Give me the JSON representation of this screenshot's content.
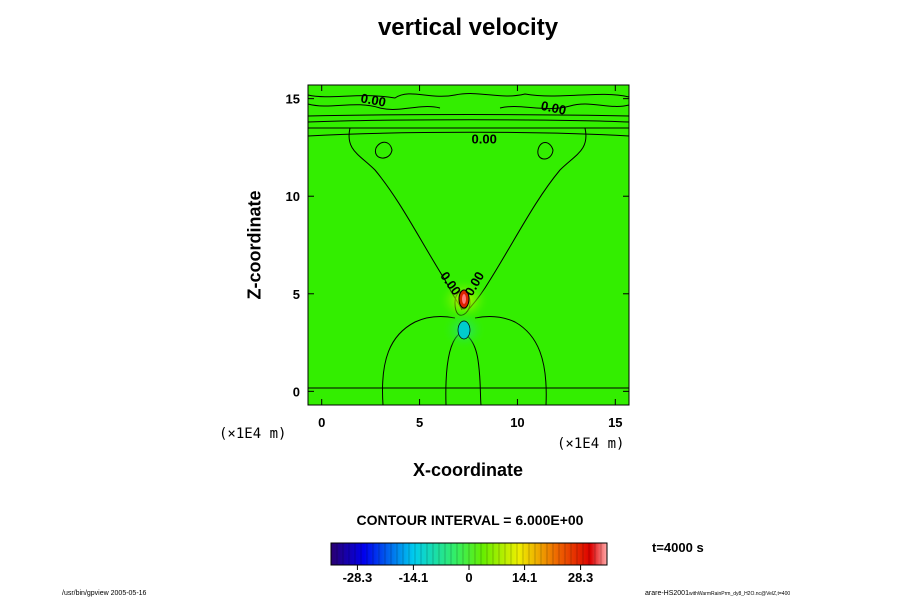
{
  "chart_data": {
    "type": "heatmap",
    "title": "vertical velocity",
    "xlabel": "X-coordinate",
    "ylabel": "Z-coordinate",
    "x_unit": "(×1E4 m)",
    "z_unit": "(×1E4 m)",
    "xlim": [
      -0.7,
      15.7
    ],
    "zlim": [
      -0.7,
      15.7
    ],
    "x_ticks": [
      0,
      5,
      10,
      15
    ],
    "z_ticks": [
      0,
      5,
      10,
      15
    ],
    "contour_interval_text": "CONTOUR INTERVAL = 6.000E+00",
    "contour_labels": [
      {
        "text": "0.00",
        "x": 2.6,
        "z": 14.7
      },
      {
        "text": "0.00",
        "x": 11.8,
        "z": 14.3
      },
      {
        "text": "0.00",
        "x": 8.3,
        "z": 12.7
      },
      {
        "text": "0.00",
        "x": 6.4,
        "z": 5.4
      },
      {
        "text": "0.00",
        "x": 8.0,
        "z": 5.4
      }
    ],
    "colorbar": {
      "ticks": [
        "-28.3",
        "-14.1",
        "0",
        "14.1",
        "28.3"
      ],
      "tick_values": [
        -28.3,
        -14.1,
        0,
        14.1,
        28.3
      ],
      "range": [
        -35,
        35
      ]
    },
    "time_label": "t=4000 s"
  },
  "footer": {
    "left": "/usr/bin/gpview 2005-05-16",
    "right": "arare-HS2001",
    "right_small": "withWarmRainPrm_dy8_H2O.nc@VelZ,t=400"
  },
  "colors": {
    "field": "#33ee00",
    "positive_core": "#dd2200",
    "negative_core": "#00cccc",
    "contour": "#000000"
  }
}
